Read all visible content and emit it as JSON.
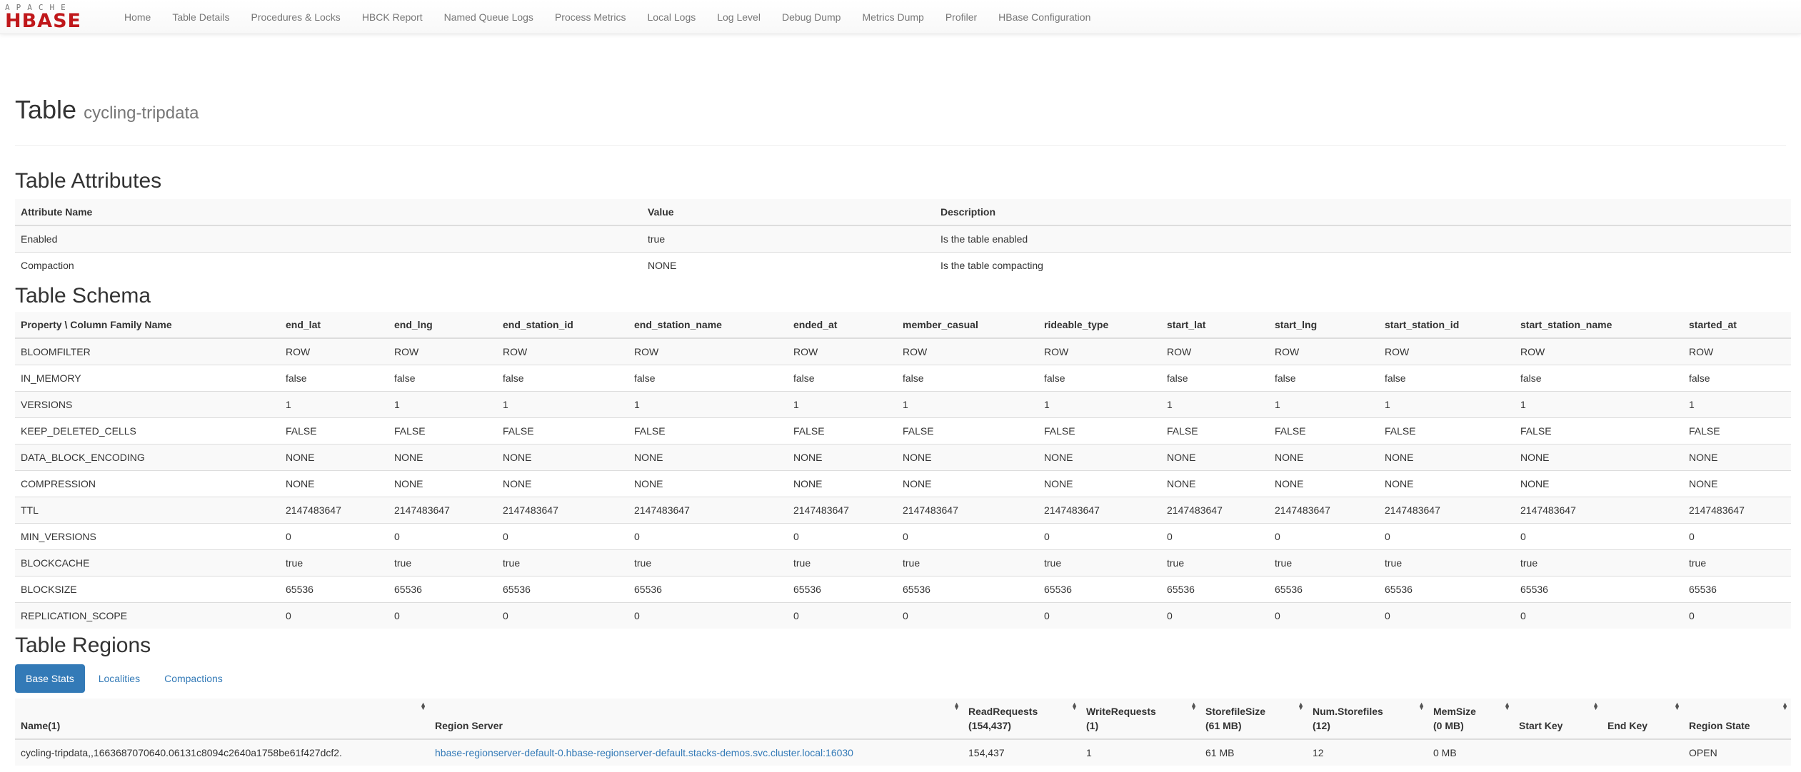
{
  "nav": {
    "logo_top": "APACHE",
    "logo_main": "HBASE",
    "items": [
      "Home",
      "Table Details",
      "Procedures & Locks",
      "HBCK Report",
      "Named Queue Logs",
      "Process Metrics",
      "Local Logs",
      "Log Level",
      "Debug Dump",
      "Metrics Dump",
      "Profiler",
      "HBase Configuration"
    ]
  },
  "title": {
    "label": "Table",
    "name": "cycling-tripdata"
  },
  "attributes": {
    "heading": "Table Attributes",
    "headers": [
      "Attribute Name",
      "Value",
      "Description"
    ],
    "rows": [
      [
        "Enabled",
        "true",
        "Is the table enabled"
      ],
      [
        "Compaction",
        "NONE",
        "Is the table compacting"
      ]
    ]
  },
  "schema": {
    "heading": "Table Schema",
    "headers": [
      "Property \\ Column Family Name",
      "end_lat",
      "end_lng",
      "end_station_id",
      "end_station_name",
      "ended_at",
      "member_casual",
      "rideable_type",
      "start_lat",
      "start_lng",
      "start_station_id",
      "start_station_name",
      "started_at"
    ],
    "rows": [
      [
        "BLOOMFILTER",
        "ROW"
      ],
      [
        "IN_MEMORY",
        "false"
      ],
      [
        "VERSIONS",
        "1"
      ],
      [
        "KEEP_DELETED_CELLS",
        "FALSE"
      ],
      [
        "DATA_BLOCK_ENCODING",
        "NONE"
      ],
      [
        "COMPRESSION",
        "NONE"
      ],
      [
        "TTL",
        "2147483647"
      ],
      [
        "MIN_VERSIONS",
        "0"
      ],
      [
        "BLOCKCACHE",
        "true"
      ],
      [
        "BLOCKSIZE",
        "65536"
      ],
      [
        "REPLICATION_SCOPE",
        "0"
      ]
    ]
  },
  "regions": {
    "heading": "Table Regions",
    "tabs": [
      "Base Stats",
      "Localities",
      "Compactions"
    ],
    "active_tab": "Base Stats",
    "headers": [
      [
        "Name(1)",
        ""
      ],
      [
        "Region Server",
        ""
      ],
      [
        "ReadRequests",
        "(154,437)"
      ],
      [
        "WriteRequests",
        "(1)"
      ],
      [
        "StorefileSize",
        "(61 MB)"
      ],
      [
        "Num.Storefiles",
        "(12)"
      ],
      [
        "MemSize",
        "(0 MB)"
      ],
      [
        "Start Key",
        ""
      ],
      [
        "End Key",
        ""
      ],
      [
        "Region State",
        ""
      ]
    ],
    "rows": [
      [
        "cycling-tripdata,,1663687070640.06131c8094c2640a1758be61f427dcf2.",
        "hbase-regionserver-default-0.hbase-regionserver-default.stacks-demos.svc.cluster.local:16030",
        "154,437",
        "1",
        "61 MB",
        "12",
        "0 MB",
        "",
        "",
        "OPEN"
      ]
    ]
  },
  "colors": {
    "accent": "#337ab7",
    "logo": "#c0181b"
  }
}
